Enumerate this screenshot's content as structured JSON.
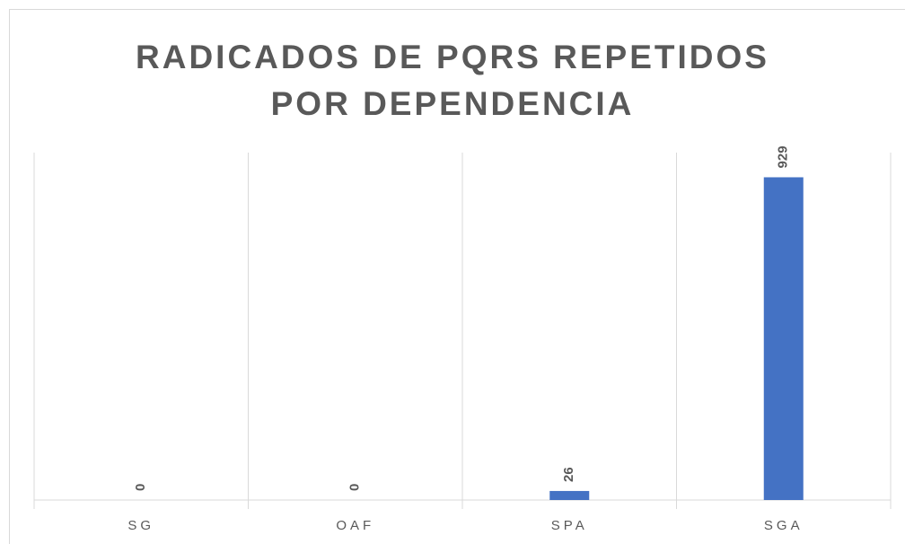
{
  "chart_data": {
    "type": "bar",
    "title": "RADICADOS DE PQRS REPETIDOS POR DEPENDENCIA",
    "categories": [
      "SG",
      "OAF",
      "SPA",
      "SGA"
    ],
    "values": [
      0,
      0,
      26,
      929
    ],
    "color": "#4472c4",
    "ylim": [
      0,
      1000
    ]
  }
}
